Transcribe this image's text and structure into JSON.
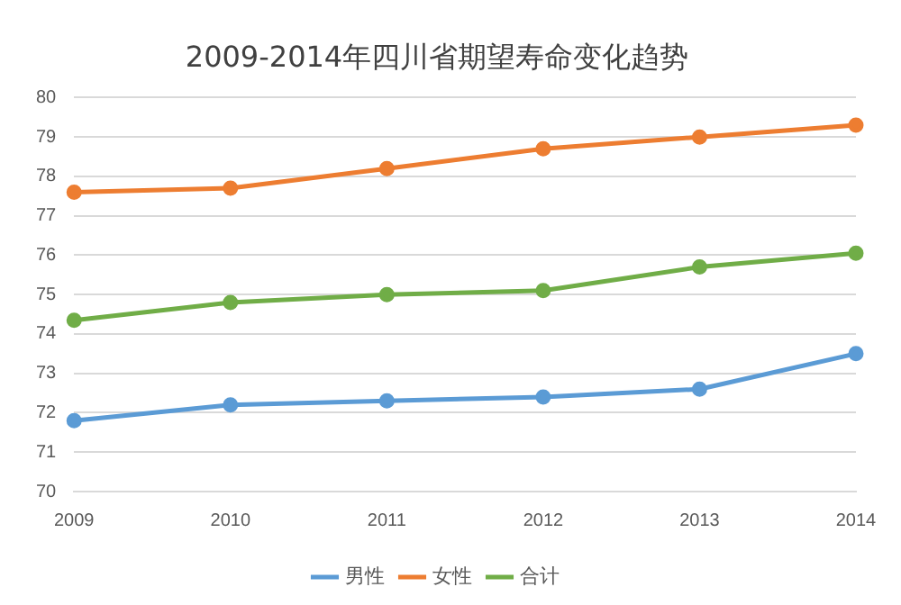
{
  "chart_data": {
    "type": "line",
    "title": "2009-2014年四川省期望寿命变化趋势",
    "categories": [
      "2009",
      "2010",
      "2011",
      "2012",
      "2013",
      "2014"
    ],
    "series": [
      {
        "name": "男性",
        "color": "#5b9bd5",
        "values": [
          71.8,
          72.2,
          72.3,
          72.4,
          72.6,
          73.5
        ]
      },
      {
        "name": "女性",
        "color": "#ed7d31",
        "values": [
          77.6,
          77.7,
          78.2,
          78.7,
          79.0,
          79.3
        ]
      },
      {
        "name": "合计",
        "color": "#70ad47",
        "values": [
          74.35,
          74.8,
          75.0,
          75.1,
          75.7,
          76.05
        ]
      }
    ],
    "ylim": [
      70,
      80
    ],
    "yticks": [
      70,
      71,
      72,
      73,
      74,
      75,
      76,
      77,
      78,
      79,
      80
    ],
    "grid": "y",
    "legend": "bottom",
    "marker": "circle",
    "line_style": "solid"
  }
}
